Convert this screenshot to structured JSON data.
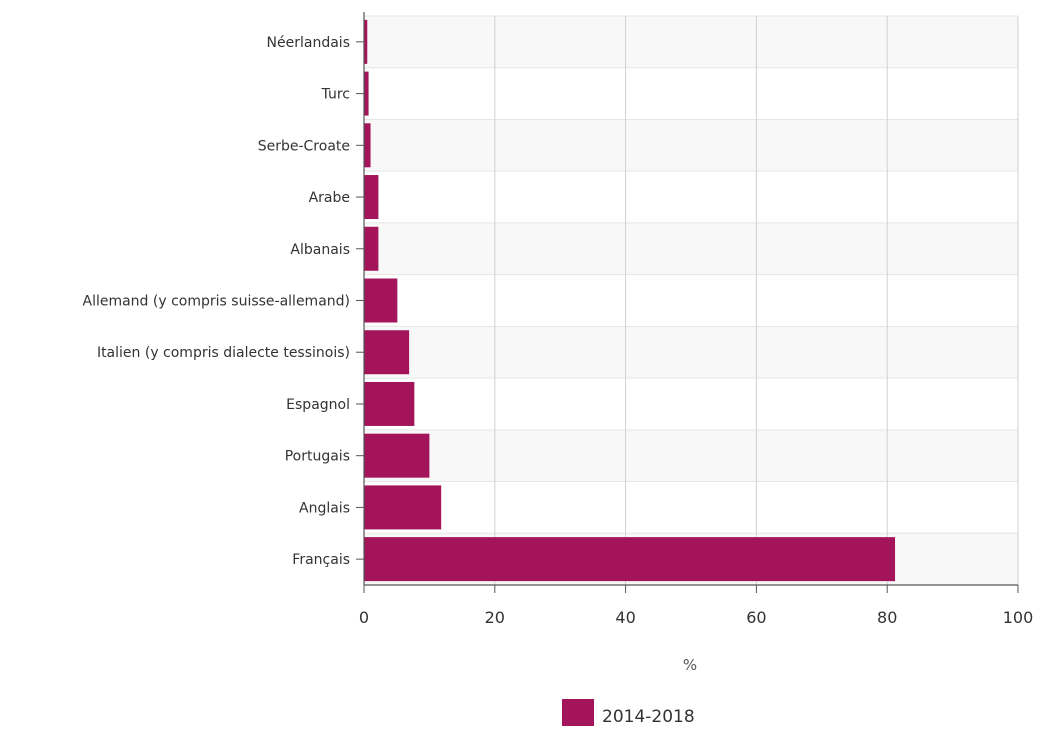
{
  "chart_data": {
    "type": "bar",
    "orientation": "horizontal",
    "categories": [
      "Néerlandais",
      "Turc",
      "Serbe-Croate",
      "Arabe",
      "Albanais",
      "Allemand (y compris suisse-allemand)",
      "Italien (y compris dialecte tessinois)",
      "Espagnol",
      "Portugais",
      "Anglais",
      "Français"
    ],
    "series": [
      {
        "name": "2014-2018",
        "color": "#a3145b",
        "values": [
          0.5,
          0.7,
          1.0,
          2.2,
          2.2,
          5.1,
          6.9,
          7.7,
          10.0,
          11.8,
          81.2
        ]
      }
    ],
    "xlabel": "%",
    "ylabel": "",
    "xlim": [
      0,
      100
    ],
    "xticks": [
      0,
      20,
      40,
      60,
      80,
      100
    ],
    "grid": true,
    "legend_position": "bottom",
    "colors": {
      "bar": "#a3145b",
      "band_alt": "#f8f8f8",
      "grid": "#d0d0d0",
      "axis": "#555555"
    }
  }
}
